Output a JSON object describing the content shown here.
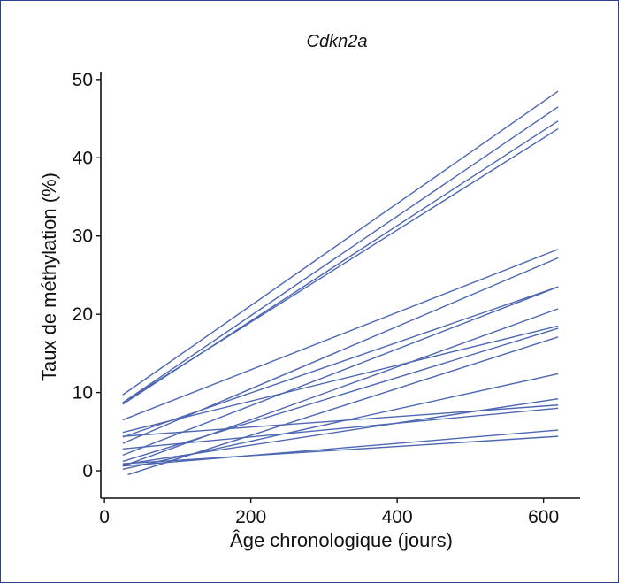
{
  "chart_data": {
    "type": "line",
    "title": "Cdkn2a",
    "xlabel": "Âge chronologique (jours)",
    "ylabel": "Taux de méthylation (%)",
    "xlim": [
      -5,
      650
    ],
    "ylim": [
      -3.5,
      51
    ],
    "xticks": [
      0,
      200,
      400,
      600
    ],
    "yticks": [
      0,
      10,
      20,
      30,
      40,
      50
    ],
    "grid": false,
    "line_color": "#4d67b3",
    "series": [
      {
        "x": [
          25,
          620
        ],
        "y": [
          9.7,
          48.5
        ]
      },
      {
        "x": [
          25,
          620
        ],
        "y": [
          8.7,
          46.5
        ]
      },
      {
        "x": [
          25,
          620
        ],
        "y": [
          8.5,
          44.7
        ]
      },
      {
        "x": [
          25,
          620
        ],
        "y": [
          8.7,
          43.7
        ]
      },
      {
        "x": [
          25,
          620
        ],
        "y": [
          6.5,
          28.3
        ]
      },
      {
        "x": [
          25,
          620
        ],
        "y": [
          3.5,
          27.2
        ]
      },
      {
        "x": [
          25,
          620
        ],
        "y": [
          4.3,
          23.5
        ]
      },
      {
        "x": [
          25,
          620
        ],
        "y": [
          2.0,
          23.5
        ]
      },
      {
        "x": [
          25,
          620
        ],
        "y": [
          0.6,
          20.7
        ]
      },
      {
        "x": [
          25,
          620
        ],
        "y": [
          4.9,
          18.5
        ]
      },
      {
        "x": [
          25,
          620
        ],
        "y": [
          1.2,
          18.2
        ]
      },
      {
        "x": [
          32,
          620
        ],
        "y": [
          -0.5,
          17.1
        ]
      },
      {
        "x": [
          25,
          620
        ],
        "y": [
          0.2,
          12.4
        ]
      },
      {
        "x": [
          25,
          620
        ],
        "y": [
          0.8,
          9.2
        ]
      },
      {
        "x": [
          25,
          620
        ],
        "y": [
          4.4,
          8.4
        ]
      },
      {
        "x": [
          25,
          620
        ],
        "y": [
          2.8,
          8.0
        ]
      },
      {
        "x": [
          25,
          620
        ],
        "y": [
          0.6,
          5.2
        ]
      },
      {
        "x": [
          25,
          620
        ],
        "y": [
          0.9,
          4.4
        ]
      }
    ]
  }
}
